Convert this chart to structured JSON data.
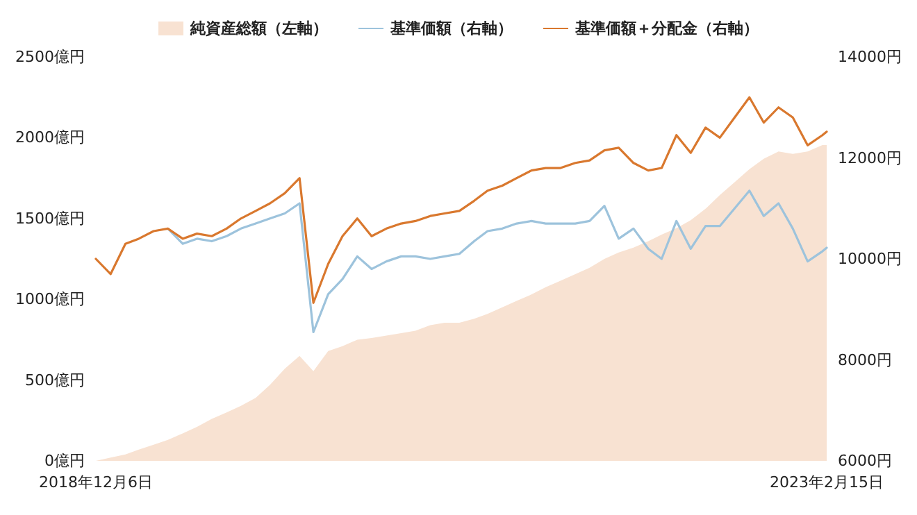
{
  "chart_data": {
    "type": "line",
    "x": [
      "2018-12-06",
      "2019-01-06",
      "2019-02-06",
      "2019-03-06",
      "2019-04-06",
      "2019-05-06",
      "2019-06-06",
      "2019-07-06",
      "2019-08-06",
      "2019-09-06",
      "2019-10-06",
      "2019-11-06",
      "2019-12-06",
      "2020-01-06",
      "2020-02-06",
      "2020-03-06",
      "2020-04-06",
      "2020-05-06",
      "2020-06-06",
      "2020-07-06",
      "2020-08-06",
      "2020-09-06",
      "2020-10-06",
      "2020-11-06",
      "2020-12-06",
      "2021-01-06",
      "2021-02-06",
      "2021-03-06",
      "2021-04-06",
      "2021-05-06",
      "2021-06-06",
      "2021-07-06",
      "2021-08-06",
      "2021-09-06",
      "2021-10-06",
      "2021-11-06",
      "2021-12-06",
      "2022-01-06",
      "2022-02-06",
      "2022-03-06",
      "2022-04-06",
      "2022-05-06",
      "2022-06-06",
      "2022-07-06",
      "2022-08-06",
      "2022-09-06",
      "2022-10-06",
      "2022-11-06",
      "2022-12-06",
      "2023-01-06",
      "2023-02-06",
      "2023-02-15"
    ],
    "series": [
      {
        "name": "純資産総額（左軸）",
        "type": "area",
        "color": "#f8e2d2",
        "values": [
          0,
          20,
          40,
          70,
          100,
          130,
          170,
          210,
          260,
          300,
          340,
          390,
          470,
          570,
          650,
          555,
          680,
          710,
          750,
          760,
          775,
          790,
          805,
          840,
          855,
          855,
          880,
          910,
          950,
          990,
          1030,
          1075,
          1115,
          1155,
          1195,
          1250,
          1290,
          1320,
          1360,
          1400,
          1440,
          1490,
          1560,
          1645,
          1725,
          1805,
          1870,
          1915,
          1900,
          1915,
          1955,
          1955
        ]
      },
      {
        "name": "基準価額（右軸）",
        "axis": "y2",
        "color": "#9dc3dc",
        "values": [
          null,
          null,
          null,
          null,
          null,
          10600,
          10300,
          10400,
          10350,
          10450,
          10600,
          10700,
          10800,
          10900,
          11100,
          8550,
          9300,
          9600,
          10050,
          9800,
          9950,
          10050,
          10050,
          10000,
          10050,
          10100,
          10350,
          10550,
          10600,
          10700,
          10750,
          10700,
          10700,
          10700,
          10750,
          11050,
          10400,
          10600,
          10200,
          10000,
          10750,
          10200,
          10650,
          10650,
          11000,
          11350,
          10850,
          11100,
          10600,
          9950,
          10150,
          10220
        ]
      },
      {
        "name": "基準価額＋分配金（右軸）",
        "axis": "y2",
        "color": "#d9782e",
        "values": [
          10000,
          9700,
          10300,
          10400,
          10550,
          10600,
          10400,
          10500,
          10450,
          10600,
          10800,
          10950,
          11100,
          11300,
          11600,
          9130,
          9900,
          10450,
          10800,
          10450,
          10600,
          10700,
          10750,
          10850,
          10900,
          10950,
          11150,
          11350,
          11450,
          11600,
          11750,
          11800,
          11800,
          11900,
          11950,
          12150,
          12200,
          11900,
          11750,
          11800,
          12450,
          12100,
          12600,
          12400,
          12800,
          13200,
          12700,
          13000,
          12800,
          12250,
          12450,
          12520
        ]
      }
    ],
    "xlim": [
      "2018-12-06",
      "2023-02-15"
    ],
    "xticks": [
      {
        "value": "2018-12-06",
        "label": "2018年12月6日"
      },
      {
        "value": "2023-02-15",
        "label": "2023年2月15日"
      }
    ],
    "ylim": [
      0,
      2500
    ],
    "yticks": [
      {
        "value": 0,
        "label": "0億円"
      },
      {
        "value": 500,
        "label": "500億円"
      },
      {
        "value": 1000,
        "label": "1000億円"
      },
      {
        "value": 1500,
        "label": "1500億円"
      },
      {
        "value": 2000,
        "label": "2000億円"
      },
      {
        "value": 2500,
        "label": "2500億円"
      }
    ],
    "y2lim": [
      6000,
      14000
    ],
    "y2ticks": [
      {
        "value": 6000,
        "label": "6000円"
      },
      {
        "value": 8000,
        "label": "8000円"
      },
      {
        "value": 10000,
        "label": "10000円"
      },
      {
        "value": 12000,
        "label": "12000円"
      },
      {
        "value": 14000,
        "label": "14000円"
      }
    ],
    "grid": false,
    "legend": "top",
    "marker": "none",
    "line_style": "solid"
  }
}
